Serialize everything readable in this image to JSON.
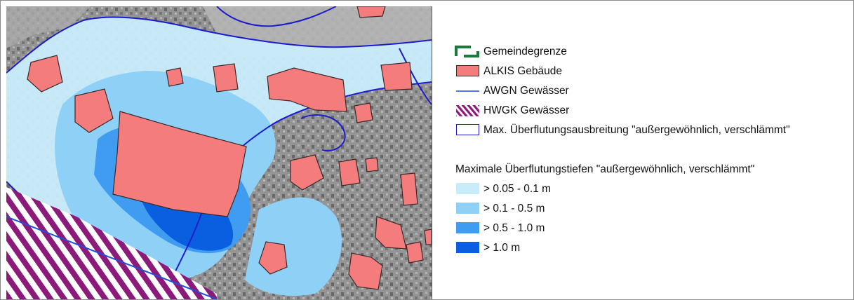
{
  "legend": {
    "items": [
      {
        "key": "gemeindegrenze",
        "label": "Gemeindegrenze",
        "symbol": "municipal-boundary",
        "color": "#1a7a3c"
      },
      {
        "key": "alkis",
        "label": "ALKIS Gebäude",
        "symbol": "building-fill",
        "color": "#f47c7c"
      },
      {
        "key": "awgn",
        "label": "AWGN Gewässer",
        "symbol": "water-line",
        "color": "#1f4fd9"
      },
      {
        "key": "hwgk",
        "label": "HWGK Gewässer",
        "symbol": "hatched-water",
        "color": "#8b1a7a"
      },
      {
        "key": "max_extent",
        "label": "Max. Überflutungsausbreitung \"außergewöhnlich, verschlämmt\"",
        "symbol": "extent-outline",
        "color": "#1c1ccc"
      }
    ],
    "depth_heading": "Maximale Überflutungstiefen \"außergewöhnlich, verschlämmt\"",
    "depth_classes": [
      {
        "label": "> 0.05 - 0.1 m",
        "color": "#c9ecfb"
      },
      {
        "label": "> 0.1 - 0.5 m",
        "color": "#8fd0f7"
      },
      {
        "label": "> 0.5 - 1.0 m",
        "color": "#3f9cf0"
      },
      {
        "label": "> 1.0 m",
        "color": "#0a5fe0"
      }
    ]
  },
  "map": {
    "colors": {
      "background": "#8c8c8c",
      "building": "#f47c7c",
      "building_edge": "#3a2a2a",
      "water_line": "#1f4fd9",
      "hatch": "#8b1a7a",
      "extent": "#1c1ccc"
    }
  }
}
